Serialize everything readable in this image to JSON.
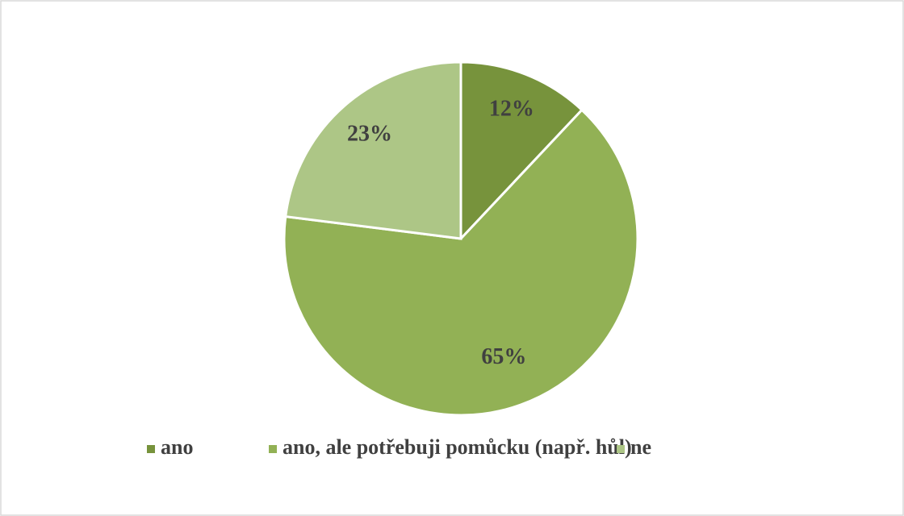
{
  "chart_data": {
    "type": "pie",
    "categories": [
      "ano",
      "ano, ale potřebuji pomůcku (např. hůl)",
      "ne"
    ],
    "values": [
      12,
      65,
      23
    ],
    "value_labels": [
      "12%",
      "65%",
      "23%"
    ],
    "colors": [
      "#77933c",
      "#92b155",
      "#adc686"
    ],
    "legend": "bottom"
  }
}
